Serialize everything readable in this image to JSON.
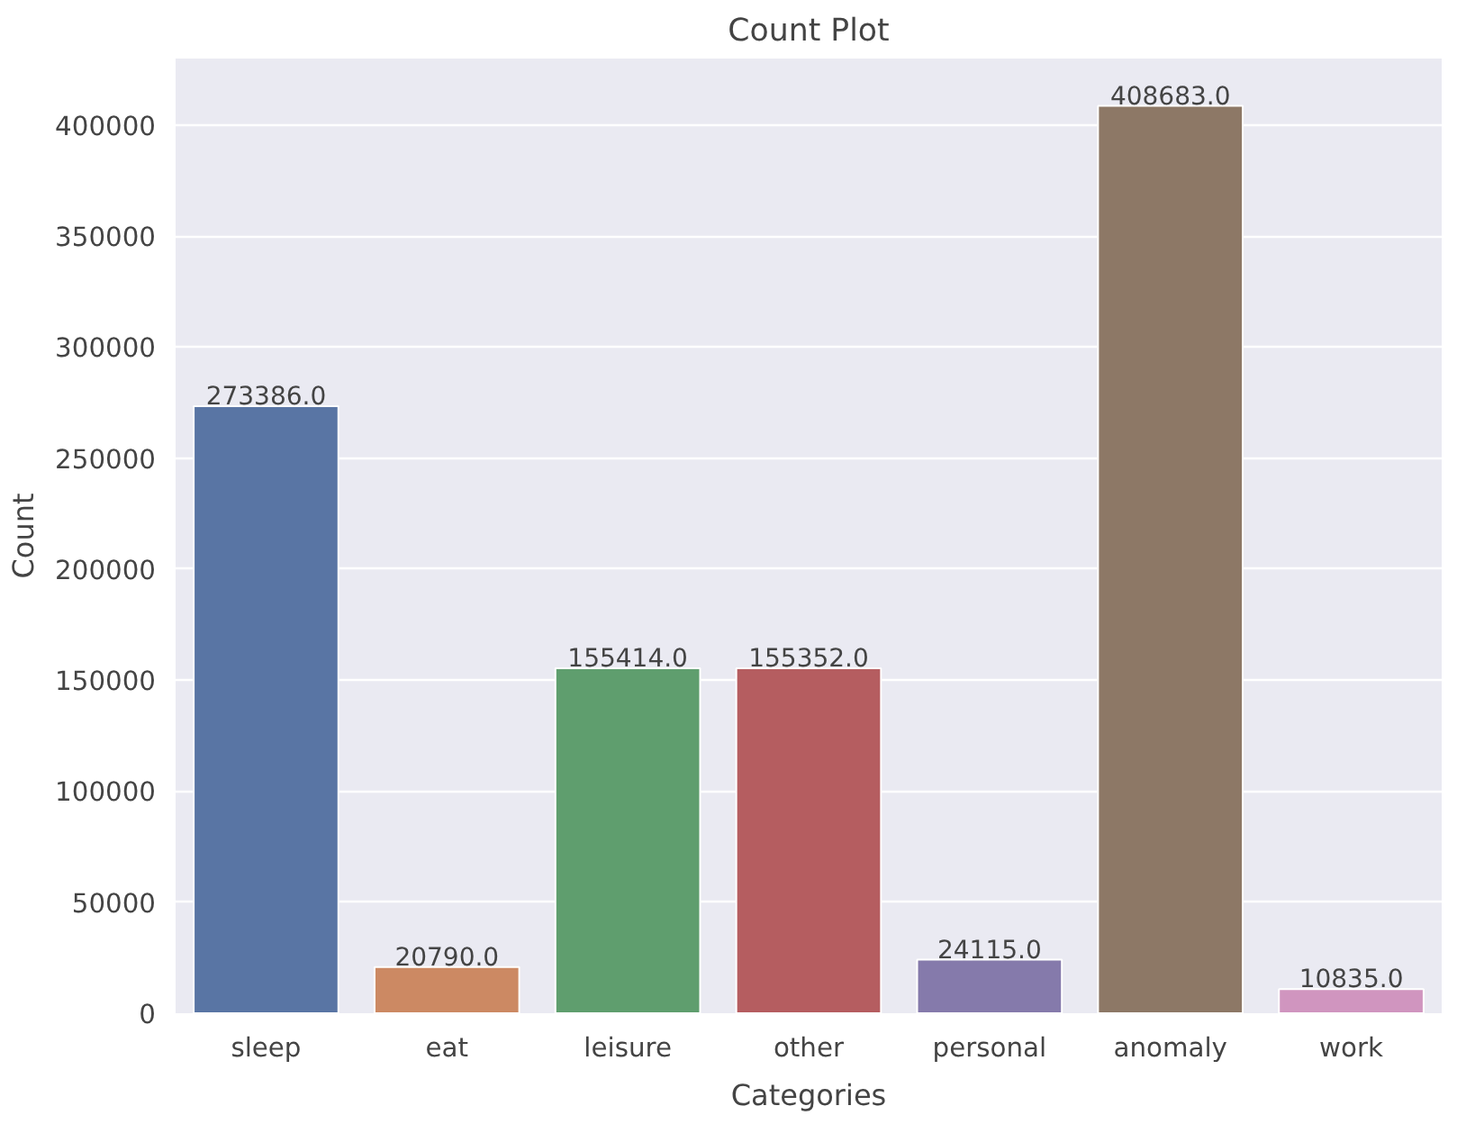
{
  "chart_data": {
    "type": "bar",
    "title": "Count Plot",
    "xlabel": "Categories",
    "ylabel": "Count",
    "categories": [
      "sleep",
      "eat",
      "leisure",
      "other",
      "personal",
      "anomaly",
      "work"
    ],
    "values": [
      273386,
      20790,
      155414,
      155352,
      24115,
      408683,
      10835
    ],
    "value_labels": [
      "273386.0",
      "20790.0",
      "155414.0",
      "155352.0",
      "24115.0",
      "408683.0",
      "10835.0"
    ],
    "colors": [
      "#5975a4",
      "#cc8963",
      "#5f9e6e",
      "#b55d60",
      "#857aab",
      "#8d7866",
      "#d095bf"
    ],
    "ylim": [
      0,
      430000
    ],
    "yticks": [
      0,
      50000,
      100000,
      150000,
      200000,
      250000,
      300000,
      350000,
      400000
    ],
    "grid": "y"
  }
}
